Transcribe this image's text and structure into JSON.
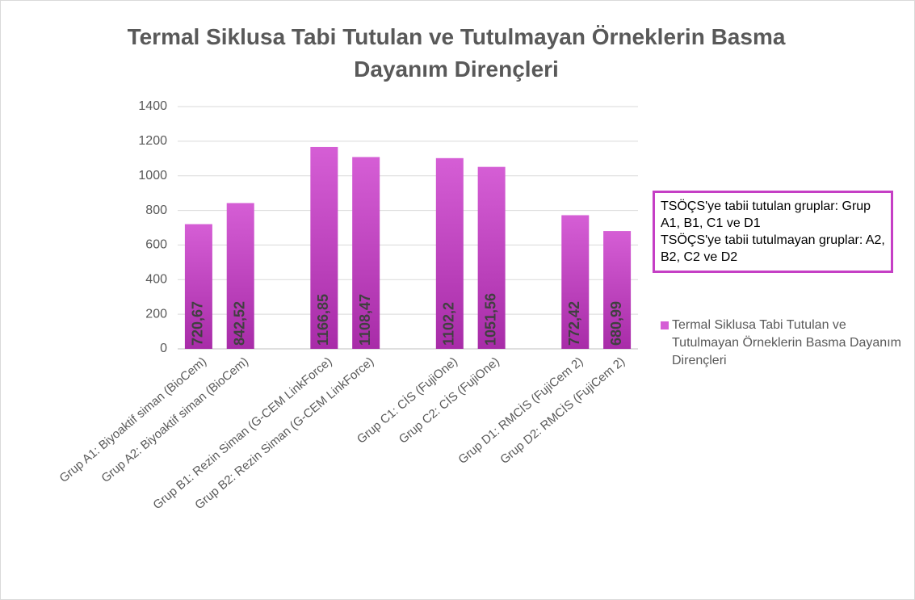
{
  "chart_data": {
    "type": "bar",
    "title": "Termal Siklusa Tabi Tutulan ve Tutulmayan Örneklerin Basma Dayanım Dirençleri",
    "categories": [
      "Grup A1: Biyoaktif siman (BioCem)",
      "Grup A2: Biyoaktif siman (BioCem)",
      null,
      "Grup B1: Rezin Siman (G-CEM LinkForce)",
      "Grup B2: Rezin Siman (G-CEM LinkForce)",
      null,
      "Grup C1: CİS (FujiOne)",
      "Grup C2: CİS (FujiOne)",
      null,
      "Grup D1: RMCİS (FujiCem 2)",
      "Grup D2: RMCİS (FujiCem 2)"
    ],
    "series": [
      {
        "name": "Termal Siklusa Tabi Tutulan ve Tutulmayan Örneklerin Basma Dayanım Dirençleri",
        "color": "#d55ed5",
        "values": [
          720.67,
          842.52,
          null,
          1166.85,
          1108.47,
          null,
          1102.2,
          1051.56,
          null,
          772.42,
          680.99
        ],
        "value_labels": [
          "720,67",
          "842,52",
          null,
          "1166,85",
          "1108,47",
          null,
          "1102,2",
          "1051,56",
          null,
          "772,42",
          "680,99"
        ]
      }
    ],
    "ylim": [
      0,
      1400
    ],
    "yticks": [
      0,
      200,
      400,
      600,
      800,
      1000,
      1200,
      1400
    ],
    "grid": true,
    "legend": "right",
    "annotation": [
      "TSÖÇS'ye tabii tutulan gruplar: Grup A1, B1, C1 ve D1",
      "TSÖÇS'ye tabii tutulmayan gruplar: A2, B2, C2 ve D2"
    ]
  }
}
